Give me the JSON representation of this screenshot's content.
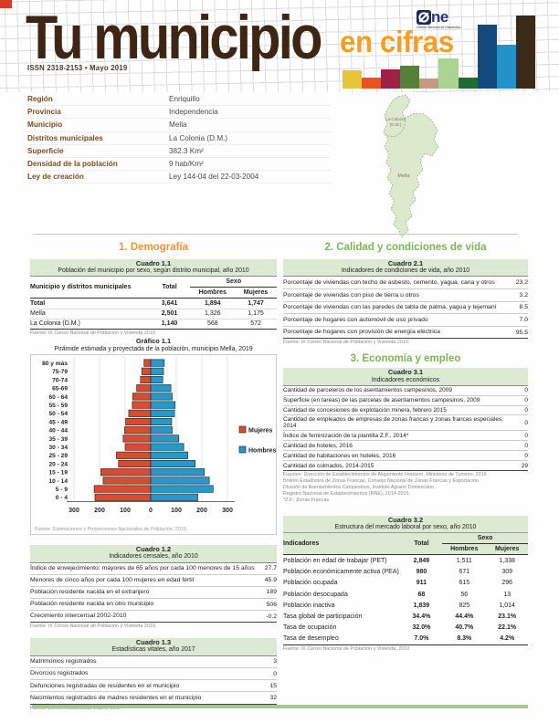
{
  "header": {
    "title": "Tu municipio",
    "subtitle": "en cifras",
    "issn_line": "ISSN 2318-2153  •  Mayo 2019",
    "logo": {
      "o_symbol": "Ø",
      "text": "ne",
      "tagline": "Oficina Nacional de Estadística"
    },
    "accent_colors": {
      "corner_square": "#d63b25",
      "title_brown": "#3e2615",
      "orange": "#f59e23",
      "section_green": "#7db45a",
      "table_header_green": "#dcead3"
    },
    "bars": [
      {
        "name": "yellow",
        "color": "#e7c53a",
        "h": 20
      },
      {
        "name": "orange",
        "color": "#e8541c",
        "h": 12
      },
      {
        "name": "maroon",
        "color": "#a02048",
        "h": 21
      },
      {
        "name": "olive-green",
        "color": "#567f3a",
        "h": 25
      },
      {
        "name": "tan",
        "color": "#c59a80",
        "h": 11
      },
      {
        "name": "light-green",
        "color": "#abd494",
        "h": 33
      },
      {
        "name": "dark-green",
        "color": "#1e6b33",
        "h": 12
      },
      {
        "name": "navy",
        "color": "#12497e",
        "h": 70
      },
      {
        "name": "blue",
        "color": "#2292c8",
        "h": 48
      },
      {
        "name": "dark-brown",
        "color": "#3c2a18",
        "h": 80
      }
    ]
  },
  "info": {
    "rows": [
      {
        "label": "Región",
        "value": "Enriquillo"
      },
      {
        "label": "Provincia",
        "value": "Independencia"
      },
      {
        "label": "Municipio",
        "value": "Mella"
      },
      {
        "label": "Distritos municipales",
        "value": "La Colonia (D.M.)"
      },
      {
        "label": "Superficie",
        "value": "382.3 Km²"
      },
      {
        "label": "Densidad de la población",
        "value": "9 hab/Km²"
      },
      {
        "label": "Ley de creación",
        "value": "Ley 144-04 del 22-03-2004"
      }
    ],
    "map_labels": {
      "district_line1": "La Colonia",
      "district_line2": "(D.M.)",
      "municipio": "Mella"
    }
  },
  "sections": {
    "s1": "1. Demografía",
    "s2": "2. Calidad y condiciones de vida",
    "s3": "3. Economía y empleo"
  },
  "cuadro11": {
    "title": "Cuadro 1.1",
    "subtitle": "Población del municipio por sexo, según distrito municipal, año 2010",
    "col_label": "Municipio y distritos municipales",
    "col_total": "Total",
    "col_sexo": "Sexo",
    "col_hombres": "Hombres",
    "col_mujeres": "Mujeres",
    "rows": [
      {
        "label": "Total",
        "total": "3,641",
        "hombres": "1,894",
        "mujeres": "1,747",
        "bold": true
      },
      {
        "label": "Mella",
        "total": "2,501",
        "hombres": "1,326",
        "mujeres": "1,175",
        "bold": false
      },
      {
        "label": "La Colonia (D.M.)",
        "total": "1,140",
        "hombres": "568",
        "mujeres": "572",
        "bold": false
      }
    ],
    "fuente": "Fuente: IX Censo Nacional de Población y Vivienda 2010."
  },
  "grafico11": {
    "title": "Gráfico 1.1",
    "subtitle": "Pirámide estimada y proyectada de la población, municipio Mella, 2019",
    "fuente": "Fuente: Estimaciones y Proyecciones Nacionales de Población, 2010."
  },
  "chart_data": {
    "type": "bar",
    "variant": "population-pyramid",
    "title": "Pirámide estimada y proyectada de la población, municipio Mella, 2019",
    "categories": [
      "80 y más",
      "75-79",
      "70-74",
      "65-69",
      "60 - 64",
      "55 - 59",
      "50 - 54",
      "45 - 49",
      "40 - 44",
      "35 - 39",
      "30 - 34",
      "25 - 29",
      "20 - 24",
      "15 - 19",
      "10 - 14",
      "5 -  9",
      "0 - 4"
    ],
    "series": [
      {
        "name": "Mujeres",
        "color": "#d94c31",
        "side": "left",
        "values": [
          26,
          35,
          40,
          55,
          70,
          72,
          86,
          98,
          102,
          108,
          100,
          134,
          126,
          195,
          186,
          221,
          218
        ]
      },
      {
        "name": "Hombres",
        "color": "#2599cc",
        "side": "right",
        "values": [
          53,
          50,
          47,
          79,
          84,
          95,
          93,
          82,
          84,
          110,
          129,
          145,
          174,
          210,
          229,
          244,
          184
        ]
      }
    ],
    "xlim": [
      -300,
      300
    ],
    "xticks": [
      300,
      200,
      100,
      0,
      100,
      200,
      300
    ],
    "legend_position": "right",
    "grid": true
  },
  "cuadro21": {
    "title": "Cuadro 2.1",
    "subtitle": "Indicadores de condiciones de vida, año 2010",
    "rows": [
      {
        "label": "Porcentaje de viviendas con techo de asbesto, cemento, yagua, cana y otros",
        "value": "23.2"
      },
      {
        "label": "Porcentaje de viviendas con piso de tierra u otros",
        "value": "3.2"
      },
      {
        "label": "Porcentaje de viviendas con las paredes de tabla de palma, yagua y tejemaní",
        "value": "8.5"
      },
      {
        "label": "Porcentaje de hogares con automóvil de uso privado",
        "value": "7.0"
      },
      {
        "label": "Porcentaje de hogares con provisión de energía eléctrica",
        "value": "95.5"
      }
    ],
    "fuente": "Fuente: IX Censo Nacional de Población y Vivienda 2010."
  },
  "cuadro31": {
    "title": "Cuadro 3.1",
    "subtitle": "Indicadores económicos",
    "rows": [
      {
        "label": "Cantidad de parceleros de los asentamientos campesinos, 2009",
        "value": "0"
      },
      {
        "label": "Superficie (en tareas) de las parcelas de asentamientos campesinos, 2009",
        "value": "0"
      },
      {
        "label": "Cantidad de concesiones de explotación minera, febrero 2015",
        "value": "0"
      },
      {
        "label": "Cantidad de empleados de empresas de zonas francas y zonas francas especiales, 2014",
        "value": "0"
      },
      {
        "label": "Índice de feminización de la plantilla Z.F., 2014*",
        "value": "0"
      },
      {
        "label": "Cantidad de hoteles, 2016",
        "value": "0"
      },
      {
        "label": "Cantidad de habitaciones en hoteles, 2016",
        "value": "0"
      },
      {
        "label": "Cantidad de colmados, 2014-2015",
        "value": "29"
      }
    ],
    "fuente_lines": [
      "Fuentes: Dirección de Establecimientos de Alojamiento Hotelero, Ministerio de Turismo, 2016",
      "Boletín Estadístico de Zonas Francas, Consejo Nacional de Zonas Francas y Exportación",
      "División de Asentamientos Campesinos, Instituto Agrario Dominicano.",
      "Registro Nacional de Establecimientos (RNE), 2014-2015.",
      "*Z.F.: Zonas Francas"
    ]
  },
  "cuadro32": {
    "title": "Cuadro 3.2",
    "subtitle": "Estructura del mercado laboral por sexo, año 2010",
    "col_label": "Indicadores",
    "col_total": "Total",
    "col_sexo": "Sexo",
    "col_hombres": "Hombres",
    "col_mujeres": "Mujeres",
    "rows": [
      {
        "label": "Población en edad de trabajar (PET)",
        "total": "2,849",
        "hombres": "1,511",
        "mujeres": "1,338",
        "bold": false
      },
      {
        "label": "Población económicamente activa (PEA)",
        "total": "980",
        "hombres": "671",
        "mujeres": "309",
        "bold": false
      },
      {
        "label": "Población ocupada",
        "total": "911",
        "hombres": "615",
        "mujeres": "296",
        "bold": false
      },
      {
        "label": "Población desocupada",
        "total": "68",
        "hombres": "56",
        "mujeres": "13",
        "bold": false
      },
      {
        "label": "Población inactiva",
        "total": "1,839",
        "hombres": "825",
        "mujeres": "1,014",
        "bold": false
      },
      {
        "label": "Tasa global de participación",
        "total": "34.4%",
        "hombres": "44.4%",
        "mujeres": "23.1%",
        "bold": true
      },
      {
        "label": "Tasa de ocupación",
        "total": "32.0%",
        "hombres": "40.7%",
        "mujeres": "22.1%",
        "bold": true
      },
      {
        "label": "Tasa de desempleo",
        "total": "7.0%",
        "hombres": "8.3%",
        "mujeres": "4.2%",
        "bold": true
      }
    ],
    "fuente": "Fuente: IX Censo Nacional de Población y Vivienda, 2010"
  },
  "cuadro12": {
    "title": "Cuadro 1.2",
    "subtitle": "Indicadores censales, año 2010",
    "rows": [
      {
        "label": "Índice de envejecimiento: mayores de 65 años por cada 100 menores de 15 años",
        "value": "27.7"
      },
      {
        "label": "Menores de cinco años por cada 100 mujeres en edad fértil",
        "value": "45.9"
      },
      {
        "label": "Población residente nacida en el extranjero",
        "value": "189"
      },
      {
        "label": "Población residente nacida en otro municipio",
        "value": "506"
      },
      {
        "label": "Crecimiento intercensal 2002-2010",
        "value": "-0.2"
      }
    ],
    "fuente": "Fuente: IX Censo Nacional de Población y Vivienda 2010."
  },
  "cuadro13": {
    "title": "Cuadro 1.3",
    "subtitle": "Estadísticas vitales, año 2017",
    "rows": [
      {
        "label": "Matrimonios registrados",
        "value": "3"
      },
      {
        "label": "Divorcios registrados",
        "value": "0"
      },
      {
        "label": "Defunciones registradas de residentes en el municipio",
        "value": "15"
      },
      {
        "label": "Nacimientos registrados de madres residentes en el municipio",
        "value": "32"
      }
    ],
    "fuente": "Fuente: Boletín Estadísticas Vitales, 2017"
  }
}
